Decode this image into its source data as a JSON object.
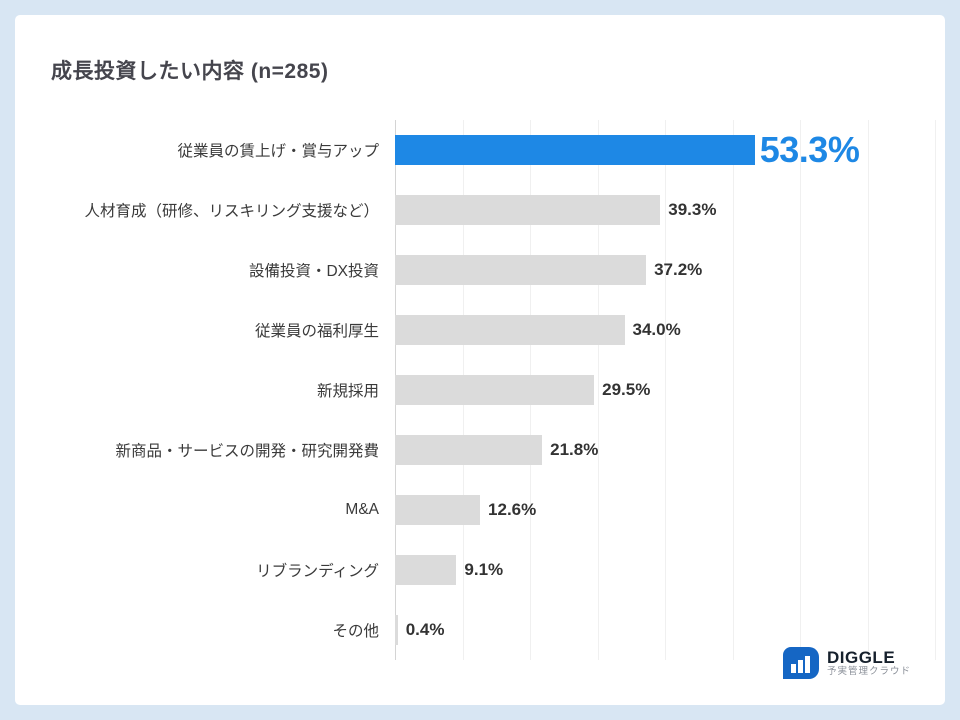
{
  "chart_data": {
    "type": "bar",
    "orientation": "horizontal",
    "title": "成長投資したい内容 (n=285)",
    "categories": [
      "従業員の賃上げ・賞与アップ",
      "人材育成（研修、リスキリング支援など）",
      "設備投資・DX投資",
      "従業員の福利厚生",
      "新規採用",
      "新商品・サービスの開発・研究開発費",
      "M&A",
      "リブランディング",
      "その他"
    ],
    "values": [
      53.3,
      39.3,
      37.2,
      34.0,
      29.5,
      21.8,
      12.6,
      9.1,
      0.4
    ],
    "value_labels": [
      "53.3%",
      "39.3%",
      "37.2%",
      "34.0%",
      "29.5%",
      "21.8%",
      "12.6%",
      "9.1%",
      "0.4%"
    ],
    "xlim": [
      0,
      80
    ],
    "grid_interval": 10,
    "highlight_index": 0,
    "legend": "none",
    "grid": "vertical-faint",
    "colors": {
      "highlight_bar": "#1E88E5",
      "bar": "#DBDBDB",
      "highlight_value_text": "#1E88E5",
      "value_text": "#333333",
      "category_text": "#3A3A3A",
      "title_text": "#45454D",
      "page_background": "#D8E6F3",
      "card_background": "#FFFFFF",
      "logo_blue": "#1566C4"
    }
  },
  "logo": {
    "name": "DIGGLE",
    "subtitle": "予実管理クラウド"
  }
}
